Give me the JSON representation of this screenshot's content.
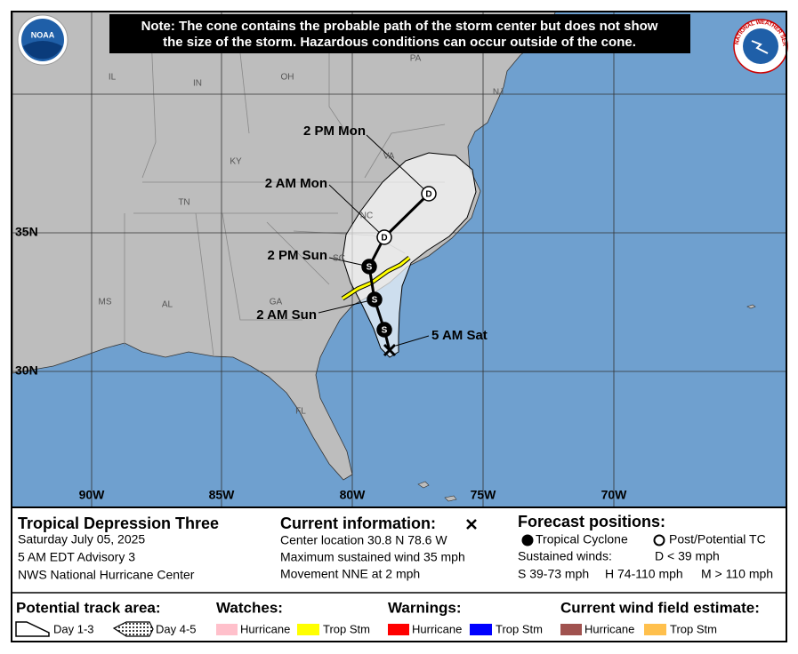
{
  "note": [
    "Note: The cone contains the probable path of the storm center but does not show",
    "the size of the storm. Hazardous conditions can occur outside of the cone."
  ],
  "logos": {
    "noaa": "NOAA",
    "nws": "NATIONAL WEATHER SERVICE"
  },
  "states": [
    "IL",
    "IN",
    "OH",
    "PA",
    "NJ",
    "KY",
    "TN",
    "VA",
    "NC",
    "SC",
    "GA",
    "AL",
    "MS",
    "FL"
  ],
  "latitudes": [
    "35N",
    "30N"
  ],
  "longitudes": [
    "90W",
    "85W",
    "80W",
    "75W",
    "70W"
  ],
  "track_labels": [
    "5 AM Sat",
    "2 AM Sun",
    "2 PM Sun",
    "2 AM Mon",
    "2 PM Mon"
  ],
  "markers": [
    "S",
    "S",
    "S",
    "D",
    "D"
  ],
  "info": {
    "storm": {
      "title": "Tropical Depression Three",
      "lines": [
        "Saturday July 05, 2025",
        "5 AM EDT Advisory 3",
        "NWS National Hurricane Center"
      ]
    },
    "current": {
      "title": "Current information:",
      "lines": [
        "Center location 30.8 N 78.6 W",
        "Maximum sustained wind 35 mph",
        "Movement NNE at 2 mph"
      ]
    },
    "forecast": {
      "title": "Forecast positions:",
      "tropical": "Tropical Cyclone",
      "post": "Post/Potential TC",
      "winds": "Sustained winds:",
      "d": "D < 39 mph",
      "s": "S 39-73 mph",
      "h": "H 74-110 mph",
      "m": "M > 110 mph"
    }
  },
  "legend": {
    "track": {
      "title": "Potential track area:",
      "day13": "Day 1-3",
      "day45": "Day 4-5"
    },
    "watches": {
      "title": "Watches:",
      "hurricane": "Hurricane",
      "storm": "Trop Stm"
    },
    "warnings": {
      "title": "Warnings:",
      "hurricane": "Hurricane",
      "storm": "Trop Stm"
    },
    "wind": {
      "title": "Current wind field estimate:",
      "hurricane": "Hurricane",
      "storm": "Trop Stm"
    }
  }
}
